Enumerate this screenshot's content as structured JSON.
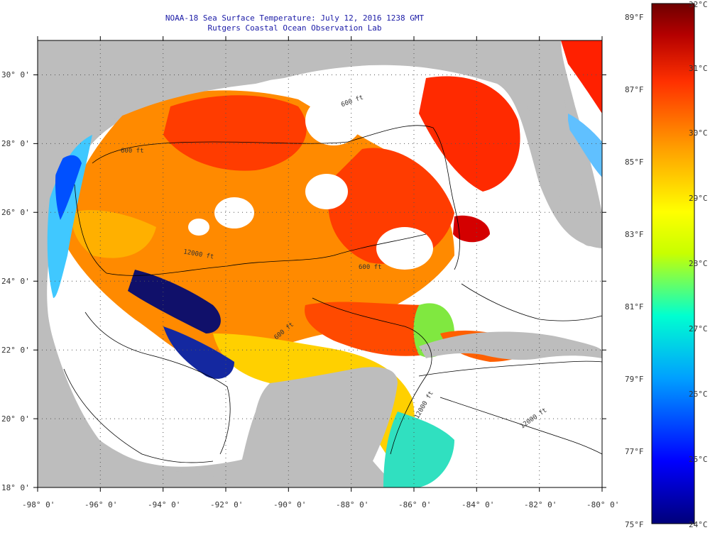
{
  "header": {
    "title_line1": "NOAA-18 Sea Surface Temperature:  July 12, 2016 1238 GMT",
    "title_line2": "Rutgers Coastal Ocean Observation Lab"
  },
  "map": {
    "lon_range": [
      -98,
      -80
    ],
    "lat_range": [
      18,
      31
    ],
    "lon_ticks": [
      "-98° 0'",
      "-96° 0'",
      "-94° 0'",
      "-92° 0'",
      "-90° 0'",
      "-88° 0'",
      "-86° 0'",
      "-84° 0'",
      "-82° 0'",
      "-80° 0'"
    ],
    "lat_ticks": [
      "18° 0'",
      "20° 0'",
      "22° 0'",
      "24° 0'",
      "26° 0'",
      "28° 0'",
      "30° 0'"
    ],
    "contour_labels": [
      "600 ft",
      "600 ft",
      "600 ft",
      "600 ft",
      "12000 ft",
      "12000 ft",
      "12000 ft"
    ],
    "land_color": "#bdbdbd",
    "cloud_color": "#ffffff",
    "grid": "dotted"
  },
  "colorbar": {
    "celsius_labels": [
      "32°C",
      "31°C",
      "30°C",
      "29°C",
      "28°C",
      "27°C",
      "26°C",
      "25°C",
      "24°C"
    ],
    "fahrenheit_labels": [
      "89°F",
      "87°F",
      "85°F",
      "83°F",
      "81°F",
      "79°F",
      "77°F",
      "75°F"
    ],
    "celsius_range": [
      24,
      32
    ],
    "colors": [
      "#00007a",
      "#0000ff",
      "#00a0ff",
      "#00ffd0",
      "#c8ff00",
      "#ffff00",
      "#ffa000",
      "#ff3000",
      "#b40000",
      "#6e0000"
    ]
  }
}
